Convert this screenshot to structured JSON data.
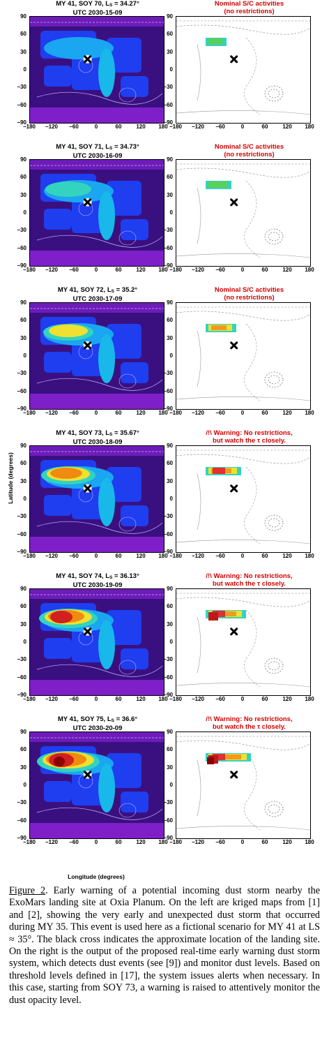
{
  "figure": {
    "y_axis_label": "Latitude (degrees)",
    "x_axis_label": "Longitude (degrees)",
    "y_ticks": [
      "90",
      "60",
      "30",
      "0",
      "−30",
      "−60",
      "−90"
    ],
    "x_ticks": [
      "−180",
      "−120",
      "−60",
      "0",
      "60",
      "120",
      "180"
    ],
    "rows": [
      {
        "left_title_1": "MY 41, SOY 70, L",
        "left_title_sub": "S",
        "left_title_2": " = 34.27°",
        "utc": "UTC 2030-15-09",
        "right_line1": "Nominal S/C activities",
        "right_line2": "(no restrictions)"
      },
      {
        "left_title_1": "MY 41, SOY 71, L",
        "left_title_sub": "S",
        "left_title_2": " = 34.73°",
        "utc": "UTC 2030-16-09",
        "right_line1": "Nominal S/C activities",
        "right_line2": "(no restrictions)"
      },
      {
        "left_title_1": "MY 41, SOY 72, L",
        "left_title_sub": "S",
        "left_title_2": " = 35.2°",
        "utc": "UTC 2030-17-09",
        "right_line1": "Nominal S/C activities",
        "right_line2": "(no restrictions)"
      },
      {
        "left_title_1": "MY 41, SOY 73, L",
        "left_title_sub": "S",
        "left_title_2": " = 35.67°",
        "utc": "UTC 2030-18-09",
        "right_line1": "/!\\ Warning: No restrictions,",
        "right_line2": "but watch the τ closely."
      },
      {
        "left_title_1": "MY 41, SOY 74, L",
        "left_title_sub": "S",
        "left_title_2": " = 36.13°",
        "utc": "UTC 2030-19-09",
        "right_line1": "/!\\ Warning: No restrictions,",
        "right_line2": "but watch the τ closely."
      },
      {
        "left_title_1": "MY 41, SOY 75, L",
        "left_title_sub": "S",
        "left_title_2": " = 36.6°",
        "utc": "UTC 2030-20-09",
        "right_line1": "/!\\ Warning: No restrictions,",
        "right_line2": "but watch the τ closely."
      }
    ],
    "colors": {
      "storm_core": "#b00000",
      "warning_text": "#d40000",
      "background_map": "#3a1080"
    }
  },
  "caption": {
    "label": "Figure 2",
    "text": ". Early warning of a potential incoming dust storm nearby the ExoMars landing site at Oxia Planum. On the left are kriged maps from [1] and [2], showing the very early and unexpected dust storm that occurred during MY 35. This event is used here as a fictional scenario for MY 41 at LS ≈ 35°. The black cross indicates the approximate location of the landing site. On the right is the output of the proposed real-time early warning dust storm system, which detects dust events (see [9]) and monitor dust levels. Based on threshold levels defined in [17], the system issues alerts when necessary. In this case, starting from SOY 73, a warning is raised to attentively monitor the dust opacity level."
  }
}
